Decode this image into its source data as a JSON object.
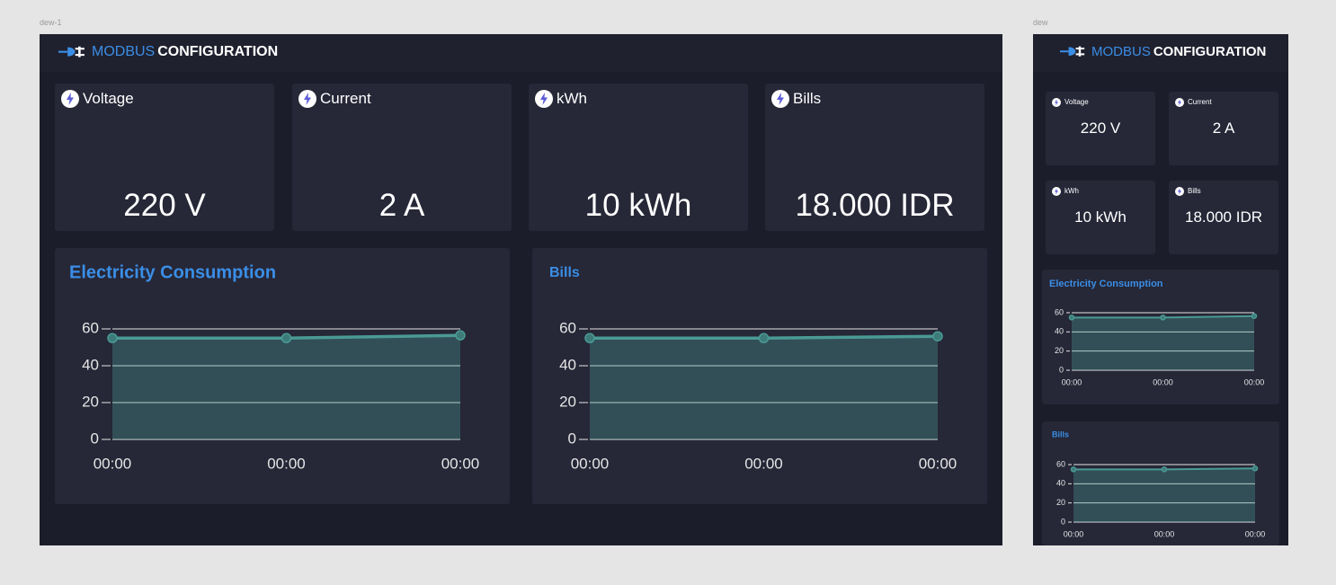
{
  "frames": [
    {
      "label": "dew-1"
    },
    {
      "label": "dew"
    }
  ],
  "header": {
    "brand_accent": "MODBUS",
    "brand": "CONFIGURATION"
  },
  "cards": [
    {
      "label": "Voltage",
      "value": "220 V"
    },
    {
      "label": "Current",
      "value": "2 A"
    },
    {
      "label": "kWh",
      "value": "10 kWh"
    },
    {
      "label": "Bills",
      "value": "18.000 IDR"
    }
  ],
  "charts": [
    {
      "type": "area",
      "title": "Electricity Consumption",
      "categories": [
        "00:00",
        "00:00",
        "00:00"
      ],
      "values": [
        55,
        55,
        56.5
      ],
      "ylim": [
        0,
        60
      ],
      "yticks": [
        0,
        20,
        40,
        60
      ],
      "color": "#4a9a94"
    },
    {
      "type": "area",
      "title": "Bills",
      "categories": [
        "00:00",
        "00:00",
        "00:00"
      ],
      "values": [
        55,
        55,
        56
      ],
      "ylim": [
        0,
        60
      ],
      "yticks": [
        0,
        20,
        40,
        60
      ],
      "color": "#4a9a94"
    }
  ]
}
